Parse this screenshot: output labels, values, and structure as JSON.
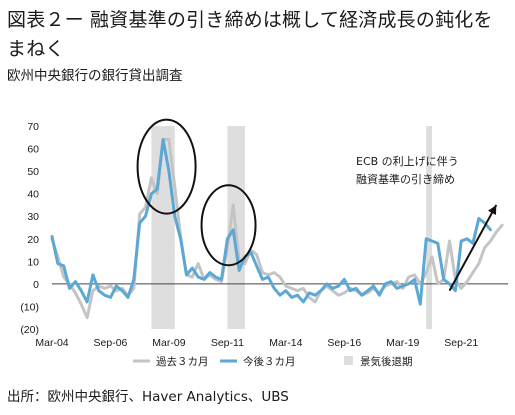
{
  "title": "図表２ー 融資基準の引き締めは概して経済成長の鈍化をまねく",
  "subtitle": "欧州中央銀行の銀行貸出調査",
  "source": "出所：欧州中央銀行、Haver Analytics、UBS",
  "chart_data": {
    "type": "line",
    "ylim": [
      -20,
      70
    ],
    "yticks": [
      "70",
      "60",
      "50",
      "40",
      "30",
      "20",
      "10",
      "0",
      "(10)",
      "(20)"
    ],
    "ytick_values": [
      70,
      60,
      50,
      40,
      30,
      20,
      10,
      0,
      -10,
      -20
    ],
    "xlim": [
      2004.0,
      2023.5
    ],
    "xticks": [
      "Mar-04",
      "Sep-06",
      "Mar-09",
      "Sep-11",
      "Mar-14",
      "Sep-16",
      "Mar-19",
      "Sep-21"
    ],
    "xtick_values": [
      2004.0,
      2006.5,
      2009.0,
      2011.5,
      2014.0,
      2016.5,
      2019.0,
      2021.5
    ],
    "recessions": [
      [
        2008.25,
        2009.25
      ],
      [
        2011.5,
        2012.25
      ],
      [
        2020.0,
        2020.25
      ]
    ],
    "series": [
      {
        "name": "過去３カ月",
        "color": "#c4c4c4",
        "points": [
          [
            2004.0,
            20
          ],
          [
            2004.25,
            12
          ],
          [
            2004.5,
            3
          ],
          [
            2004.75,
            0
          ],
          [
            2005.0,
            -4
          ],
          [
            2005.25,
            -9
          ],
          [
            2005.5,
            -15
          ],
          [
            2005.75,
            -3
          ],
          [
            2006.0,
            -1
          ],
          [
            2006.25,
            -2
          ],
          [
            2006.5,
            -1
          ],
          [
            2006.75,
            -3
          ],
          [
            2007.0,
            -2
          ],
          [
            2007.25,
            -5
          ],
          [
            2007.5,
            -2
          ],
          [
            2007.75,
            31
          ],
          [
            2008.0,
            34
          ],
          [
            2008.25,
            47
          ],
          [
            2008.5,
            40
          ],
          [
            2008.75,
            64
          ],
          [
            2009.0,
            64
          ],
          [
            2009.25,
            43
          ],
          [
            2009.5,
            21
          ],
          [
            2009.75,
            4
          ],
          [
            2010.0,
            3
          ],
          [
            2010.25,
            9
          ],
          [
            2010.5,
            2
          ],
          [
            2010.75,
            4
          ],
          [
            2011.0,
            2
          ],
          [
            2011.25,
            1
          ],
          [
            2011.5,
            16
          ],
          [
            2011.75,
            35
          ],
          [
            2012.0,
            10
          ],
          [
            2012.25,
            9
          ],
          [
            2012.5,
            15
          ],
          [
            2012.75,
            13
          ],
          [
            2013.0,
            5
          ],
          [
            2013.25,
            4
          ],
          [
            2013.5,
            5
          ],
          [
            2013.75,
            3
          ],
          [
            2014.0,
            -1
          ],
          [
            2014.25,
            -2
          ],
          [
            2014.5,
            -3
          ],
          [
            2014.75,
            -2
          ],
          [
            2015.0,
            -6
          ],
          [
            2015.25,
            -8
          ],
          [
            2015.5,
            -3
          ],
          [
            2015.75,
            -1
          ],
          [
            2016.0,
            -3
          ],
          [
            2016.25,
            -5
          ],
          [
            2016.5,
            -4
          ],
          [
            2016.75,
            -2
          ],
          [
            2017.0,
            -3
          ],
          [
            2017.25,
            -5
          ],
          [
            2017.5,
            -4
          ],
          [
            2017.75,
            -2
          ],
          [
            2018.0,
            -4
          ],
          [
            2018.25,
            -1
          ],
          [
            2018.5,
            0
          ],
          [
            2018.75,
            1
          ],
          [
            2019.0,
            -2
          ],
          [
            2019.25,
            3
          ],
          [
            2019.5,
            4
          ],
          [
            2019.75,
            0
          ],
          [
            2020.0,
            5
          ],
          [
            2020.25,
            12
          ],
          [
            2020.5,
            0
          ],
          [
            2020.75,
            2
          ],
          [
            2021.0,
            19
          ],
          [
            2021.25,
            2
          ],
          [
            2021.5,
            -2
          ],
          [
            2021.75,
            1
          ],
          [
            2022.0,
            5
          ],
          [
            2022.25,
            9
          ],
          [
            2022.5,
            16
          ],
          [
            2022.75,
            19
          ],
          [
            2023.0,
            23
          ],
          [
            2023.25,
            26
          ]
        ]
      },
      {
        "name": "今後３カ月",
        "color": "#5ba8d4",
        "points": [
          [
            2004.0,
            21
          ],
          [
            2004.25,
            9
          ],
          [
            2004.5,
            8
          ],
          [
            2004.75,
            -2
          ],
          [
            2005.0,
            1
          ],
          [
            2005.25,
            -3
          ],
          [
            2005.5,
            -8
          ],
          [
            2005.75,
            4
          ],
          [
            2006.0,
            -3
          ],
          [
            2006.25,
            -5
          ],
          [
            2006.5,
            -6
          ],
          [
            2006.75,
            -1
          ],
          [
            2007.0,
            -3
          ],
          [
            2007.25,
            -6
          ],
          [
            2007.5,
            2
          ],
          [
            2007.75,
            27
          ],
          [
            2008.0,
            30
          ],
          [
            2008.25,
            40
          ],
          [
            2008.5,
            42
          ],
          [
            2008.75,
            64
          ],
          [
            2009.0,
            50
          ],
          [
            2009.25,
            30
          ],
          [
            2009.5,
            20
          ],
          [
            2009.75,
            4
          ],
          [
            2010.0,
            7
          ],
          [
            2010.25,
            3
          ],
          [
            2010.5,
            2
          ],
          [
            2010.75,
            5
          ],
          [
            2011.0,
            3
          ],
          [
            2011.25,
            2
          ],
          [
            2011.5,
            20
          ],
          [
            2011.75,
            24
          ],
          [
            2012.0,
            6
          ],
          [
            2012.25,
            12
          ],
          [
            2012.5,
            14
          ],
          [
            2012.75,
            8
          ],
          [
            2013.0,
            2
          ],
          [
            2013.25,
            3
          ],
          [
            2013.5,
            -2
          ],
          [
            2013.75,
            -5
          ],
          [
            2014.0,
            -3
          ],
          [
            2014.25,
            -6
          ],
          [
            2014.5,
            -5
          ],
          [
            2014.75,
            -8
          ],
          [
            2015.0,
            -4
          ],
          [
            2015.25,
            -5
          ],
          [
            2015.5,
            -3
          ],
          [
            2015.75,
            0
          ],
          [
            2016.0,
            -2
          ],
          [
            2016.25,
            -1
          ],
          [
            2016.5,
            2
          ],
          [
            2016.75,
            -3
          ],
          [
            2017.0,
            -2
          ],
          [
            2017.25,
            -5
          ],
          [
            2017.5,
            -3
          ],
          [
            2017.75,
            -1
          ],
          [
            2018.0,
            -5
          ],
          [
            2018.25,
            0
          ],
          [
            2018.5,
            1
          ],
          [
            2018.75,
            -2
          ],
          [
            2019.0,
            -1
          ],
          [
            2019.25,
            0
          ],
          [
            2019.5,
            2
          ],
          [
            2019.75,
            -9
          ],
          [
            2020.0,
            20
          ],
          [
            2020.25,
            19
          ],
          [
            2020.5,
            18
          ],
          [
            2020.75,
            2
          ],
          [
            2021.0,
            0
          ],
          [
            2021.25,
            -3
          ],
          [
            2021.5,
            19
          ],
          [
            2021.75,
            20
          ],
          [
            2022.0,
            18
          ],
          [
            2022.25,
            29
          ],
          [
            2022.5,
            27
          ],
          [
            2022.75,
            24
          ]
        ]
      }
    ],
    "legend": [
      {
        "label": "過去３カ月",
        "kind": "line",
        "color": "#c4c4c4"
      },
      {
        "label": "今後３カ月",
        "kind": "line",
        "color": "#5ba8d4"
      },
      {
        "label": "景気後退期",
        "kind": "box",
        "color": "#dedede"
      }
    ],
    "annotation": {
      "lines": [
        "ECB の利上げに伴う",
        "融資基準の引き締め"
      ],
      "arrow_from": [
        2021.0,
        -3
      ],
      "arrow_to": [
        2023.0,
        35
      ]
    },
    "circles": [
      {
        "cx": 2008.9,
        "cy": 52
      },
      {
        "cx": 2011.55,
        "cy": 26
      }
    ]
  }
}
